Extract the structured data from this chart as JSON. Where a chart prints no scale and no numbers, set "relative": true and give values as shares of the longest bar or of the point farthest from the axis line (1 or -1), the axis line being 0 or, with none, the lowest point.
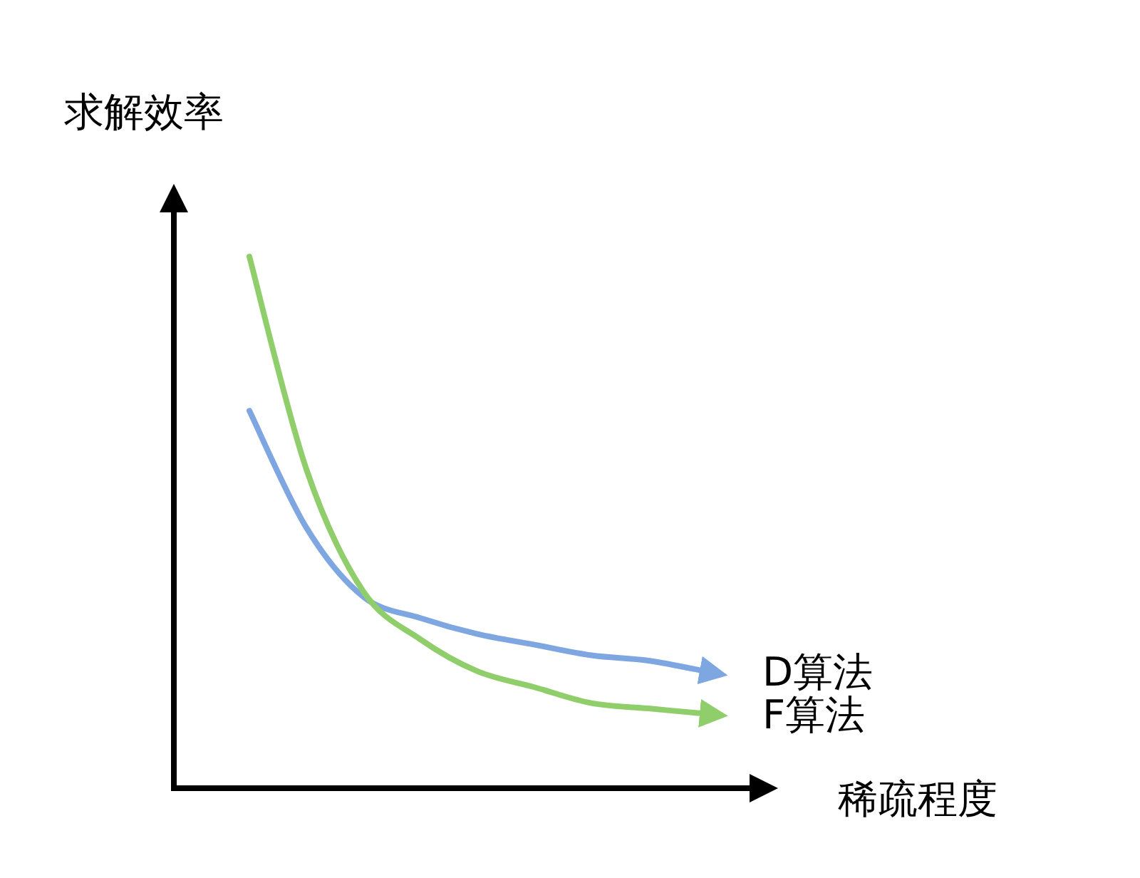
{
  "chart_data": {
    "type": "line",
    "relative": true,
    "xlabel": "稀疏程度",
    "ylabel": "求解效率",
    "categories": [
      null,
      null,
      null,
      null,
      null,
      null,
      null,
      null,
      null
    ],
    "series": [
      {
        "name": "D算法",
        "color": "#7ea6e0",
        "values": [
          0.71,
          0.49,
          0.36,
          0.32,
          0.29,
          0.27,
          0.25,
          0.24,
          0.22
        ]
      },
      {
        "name": "F算法",
        "color": "#8fce6a",
        "values": [
          1.0,
          0.6,
          0.37,
          0.28,
          0.22,
          0.19,
          0.16,
          0.15,
          0.14
        ]
      }
    ]
  }
}
